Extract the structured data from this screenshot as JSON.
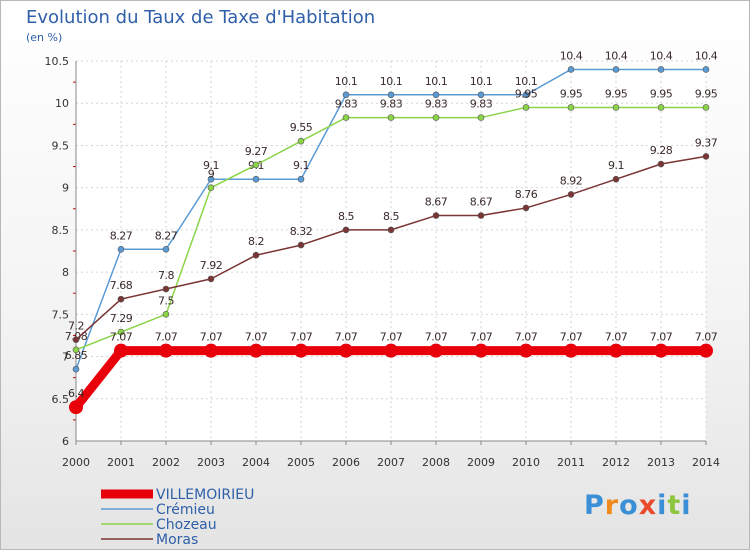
{
  "header": {
    "title": "Evolution du Taux de Taxe d'Habitation",
    "subtitle": "(en %)"
  },
  "logo": {
    "text": "Proxiti",
    "colors": [
      "#3b8fd6",
      "#f08a1c",
      "#3b8fd6",
      "#e94a2c",
      "#3b8fd6",
      "#8cc63f",
      "#3b8fd6"
    ]
  },
  "chart_data": {
    "type": "line",
    "x": [
      2000,
      2001,
      2002,
      2003,
      2004,
      2005,
      2006,
      2007,
      2008,
      2009,
      2010,
      2011,
      2012,
      2013,
      2014
    ],
    "ylim": [
      6,
      10.5
    ],
    "yticks": [
      "6",
      "6.5",
      "7",
      "7.5",
      "8",
      "8.5",
      "9",
      "9.5",
      "10",
      "10.5"
    ],
    "grid": true,
    "legend_position": "bottom-left",
    "series": [
      {
        "name": "VILLEMOIRIEU",
        "color": "#e8000b",
        "values": [
          6.4,
          7.07,
          7.07,
          7.07,
          7.07,
          7.07,
          7.07,
          7.07,
          7.07,
          7.07,
          7.07,
          7.07,
          7.07,
          7.07,
          7.07
        ],
        "labels": [
          "6.4",
          "7.07",
          "7.07",
          "7.07",
          "7.07",
          "7.07",
          "7.07",
          "7.07",
          "7.07",
          "7.07",
          "7.07",
          "7.07",
          "7.07",
          "7.07",
          "7.07"
        ]
      },
      {
        "name": "Crémieu",
        "color": "#5b9bd5",
        "values": [
          6.85,
          8.27,
          8.27,
          9.1,
          9.1,
          9.1,
          10.1,
          10.1,
          10.1,
          10.1,
          10.1,
          10.4,
          10.4,
          10.4,
          10.4
        ],
        "labels": [
          "6.85",
          "8.27",
          "8.27",
          "9.1",
          "9.1",
          "9.1",
          "10.1",
          "10.1",
          "10.1",
          "10.1",
          "10.1",
          "10.4",
          "10.4",
          "10.4",
          "10.4"
        ]
      },
      {
        "name": "Chozeau",
        "color": "#8bd448",
        "values": [
          7.08,
          7.29,
          7.5,
          9,
          9.27,
          9.55,
          9.83,
          9.83,
          9.83,
          9.83,
          9.95,
          9.95,
          9.95,
          9.95,
          9.95
        ],
        "labels": [
          "7.08",
          "7.29",
          "7.5",
          "9",
          "9.27",
          "9.55",
          "9.83",
          "9.83",
          "9.83",
          "9.83",
          "9.95",
          "9.95",
          "9.95",
          "9.95",
          "9.95"
        ]
      },
      {
        "name": "Moras",
        "color": "#7a3535",
        "values": [
          7.2,
          7.68,
          7.8,
          7.92,
          8.2,
          8.32,
          8.5,
          8.5,
          8.67,
          8.67,
          8.76,
          8.92,
          9.1,
          9.28,
          9.37
        ],
        "labels": [
          "7.2",
          "7.68",
          "7.8",
          "7.92",
          "8.2",
          "8.32",
          "8.5",
          "8.5",
          "8.67",
          "8.67",
          "8.76",
          "8.92",
          "9.1",
          "9.28",
          "9.37"
        ]
      }
    ]
  }
}
